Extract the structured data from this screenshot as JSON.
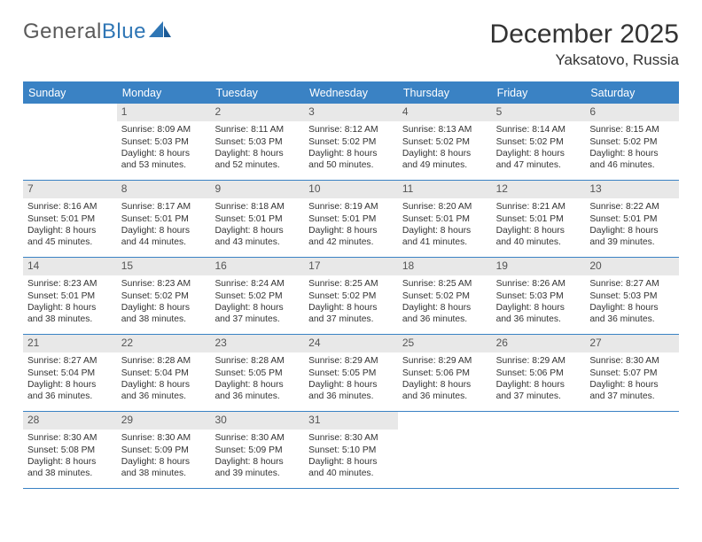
{
  "brand": {
    "word1": "General",
    "word2": "Blue"
  },
  "title": "December 2025",
  "location": "Yaksatovo, Russia",
  "colors": {
    "header_bg": "#3a82c4",
    "header_text": "#ffffff",
    "daynum_bg": "#e8e8e8",
    "daynum_text": "#555555",
    "border": "#3a82c4",
    "body_text": "#333333",
    "logo_gray": "#5a5a5a",
    "logo_blue": "#2f76b5"
  },
  "weekdays": [
    "Sunday",
    "Monday",
    "Tuesday",
    "Wednesday",
    "Thursday",
    "Friday",
    "Saturday"
  ],
  "weeks": [
    [
      {
        "n": "",
        "sr": "",
        "ss": "",
        "d1": "",
        "d2": ""
      },
      {
        "n": "1",
        "sr": "Sunrise: 8:09 AM",
        "ss": "Sunset: 5:03 PM",
        "d1": "Daylight: 8 hours",
        "d2": "and 53 minutes."
      },
      {
        "n": "2",
        "sr": "Sunrise: 8:11 AM",
        "ss": "Sunset: 5:03 PM",
        "d1": "Daylight: 8 hours",
        "d2": "and 52 minutes."
      },
      {
        "n": "3",
        "sr": "Sunrise: 8:12 AM",
        "ss": "Sunset: 5:02 PM",
        "d1": "Daylight: 8 hours",
        "d2": "and 50 minutes."
      },
      {
        "n": "4",
        "sr": "Sunrise: 8:13 AM",
        "ss": "Sunset: 5:02 PM",
        "d1": "Daylight: 8 hours",
        "d2": "and 49 minutes."
      },
      {
        "n": "5",
        "sr": "Sunrise: 8:14 AM",
        "ss": "Sunset: 5:02 PM",
        "d1": "Daylight: 8 hours",
        "d2": "and 47 minutes."
      },
      {
        "n": "6",
        "sr": "Sunrise: 8:15 AM",
        "ss": "Sunset: 5:02 PM",
        "d1": "Daylight: 8 hours",
        "d2": "and 46 minutes."
      }
    ],
    [
      {
        "n": "7",
        "sr": "Sunrise: 8:16 AM",
        "ss": "Sunset: 5:01 PM",
        "d1": "Daylight: 8 hours",
        "d2": "and 45 minutes."
      },
      {
        "n": "8",
        "sr": "Sunrise: 8:17 AM",
        "ss": "Sunset: 5:01 PM",
        "d1": "Daylight: 8 hours",
        "d2": "and 44 minutes."
      },
      {
        "n": "9",
        "sr": "Sunrise: 8:18 AM",
        "ss": "Sunset: 5:01 PM",
        "d1": "Daylight: 8 hours",
        "d2": "and 43 minutes."
      },
      {
        "n": "10",
        "sr": "Sunrise: 8:19 AM",
        "ss": "Sunset: 5:01 PM",
        "d1": "Daylight: 8 hours",
        "d2": "and 42 minutes."
      },
      {
        "n": "11",
        "sr": "Sunrise: 8:20 AM",
        "ss": "Sunset: 5:01 PM",
        "d1": "Daylight: 8 hours",
        "d2": "and 41 minutes."
      },
      {
        "n": "12",
        "sr": "Sunrise: 8:21 AM",
        "ss": "Sunset: 5:01 PM",
        "d1": "Daylight: 8 hours",
        "d2": "and 40 minutes."
      },
      {
        "n": "13",
        "sr": "Sunrise: 8:22 AM",
        "ss": "Sunset: 5:01 PM",
        "d1": "Daylight: 8 hours",
        "d2": "and 39 minutes."
      }
    ],
    [
      {
        "n": "14",
        "sr": "Sunrise: 8:23 AM",
        "ss": "Sunset: 5:01 PM",
        "d1": "Daylight: 8 hours",
        "d2": "and 38 minutes."
      },
      {
        "n": "15",
        "sr": "Sunrise: 8:23 AM",
        "ss": "Sunset: 5:02 PM",
        "d1": "Daylight: 8 hours",
        "d2": "and 38 minutes."
      },
      {
        "n": "16",
        "sr": "Sunrise: 8:24 AM",
        "ss": "Sunset: 5:02 PM",
        "d1": "Daylight: 8 hours",
        "d2": "and 37 minutes."
      },
      {
        "n": "17",
        "sr": "Sunrise: 8:25 AM",
        "ss": "Sunset: 5:02 PM",
        "d1": "Daylight: 8 hours",
        "d2": "and 37 minutes."
      },
      {
        "n": "18",
        "sr": "Sunrise: 8:25 AM",
        "ss": "Sunset: 5:02 PM",
        "d1": "Daylight: 8 hours",
        "d2": "and 36 minutes."
      },
      {
        "n": "19",
        "sr": "Sunrise: 8:26 AM",
        "ss": "Sunset: 5:03 PM",
        "d1": "Daylight: 8 hours",
        "d2": "and 36 minutes."
      },
      {
        "n": "20",
        "sr": "Sunrise: 8:27 AM",
        "ss": "Sunset: 5:03 PM",
        "d1": "Daylight: 8 hours",
        "d2": "and 36 minutes."
      }
    ],
    [
      {
        "n": "21",
        "sr": "Sunrise: 8:27 AM",
        "ss": "Sunset: 5:04 PM",
        "d1": "Daylight: 8 hours",
        "d2": "and 36 minutes."
      },
      {
        "n": "22",
        "sr": "Sunrise: 8:28 AM",
        "ss": "Sunset: 5:04 PM",
        "d1": "Daylight: 8 hours",
        "d2": "and 36 minutes."
      },
      {
        "n": "23",
        "sr": "Sunrise: 8:28 AM",
        "ss": "Sunset: 5:05 PM",
        "d1": "Daylight: 8 hours",
        "d2": "and 36 minutes."
      },
      {
        "n": "24",
        "sr": "Sunrise: 8:29 AM",
        "ss": "Sunset: 5:05 PM",
        "d1": "Daylight: 8 hours",
        "d2": "and 36 minutes."
      },
      {
        "n": "25",
        "sr": "Sunrise: 8:29 AM",
        "ss": "Sunset: 5:06 PM",
        "d1": "Daylight: 8 hours",
        "d2": "and 36 minutes."
      },
      {
        "n": "26",
        "sr": "Sunrise: 8:29 AM",
        "ss": "Sunset: 5:06 PM",
        "d1": "Daylight: 8 hours",
        "d2": "and 37 minutes."
      },
      {
        "n": "27",
        "sr": "Sunrise: 8:30 AM",
        "ss": "Sunset: 5:07 PM",
        "d1": "Daylight: 8 hours",
        "d2": "and 37 minutes."
      }
    ],
    [
      {
        "n": "28",
        "sr": "Sunrise: 8:30 AM",
        "ss": "Sunset: 5:08 PM",
        "d1": "Daylight: 8 hours",
        "d2": "and 38 minutes."
      },
      {
        "n": "29",
        "sr": "Sunrise: 8:30 AM",
        "ss": "Sunset: 5:09 PM",
        "d1": "Daylight: 8 hours",
        "d2": "and 38 minutes."
      },
      {
        "n": "30",
        "sr": "Sunrise: 8:30 AM",
        "ss": "Sunset: 5:09 PM",
        "d1": "Daylight: 8 hours",
        "d2": "and 39 minutes."
      },
      {
        "n": "31",
        "sr": "Sunrise: 8:30 AM",
        "ss": "Sunset: 5:10 PM",
        "d1": "Daylight: 8 hours",
        "d2": "and 40 minutes."
      },
      {
        "n": "",
        "sr": "",
        "ss": "",
        "d1": "",
        "d2": ""
      },
      {
        "n": "",
        "sr": "",
        "ss": "",
        "d1": "",
        "d2": ""
      },
      {
        "n": "",
        "sr": "",
        "ss": "",
        "d1": "",
        "d2": ""
      }
    ]
  ]
}
